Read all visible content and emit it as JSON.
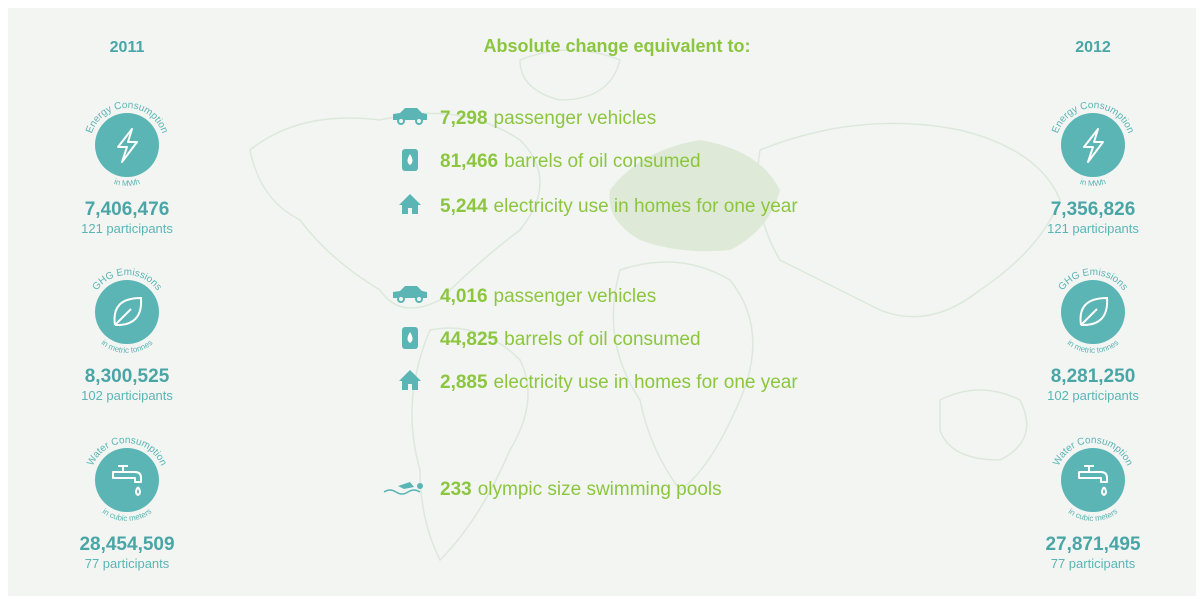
{
  "years": {
    "left": "2011",
    "right": "2012"
  },
  "title": "Absolute change equivalent to:",
  "metrics": [
    {
      "name": "Energy Consumption",
      "unit": "in MWh",
      "values": [
        "7,406,476",
        "7,356,826"
      ],
      "participants": [
        "121 participants",
        "121 participants"
      ]
    },
    {
      "name": "GHG Emissions",
      "unit": "in metric tonnes",
      "values": [
        "8,300,525",
        "8,281,250"
      ],
      "participants": [
        "102 participants",
        "102 participants"
      ]
    },
    {
      "name": "Water Consumption",
      "unit": "in cubic meters",
      "values": [
        "28,454,509",
        "27,871,495"
      ],
      "participants": [
        "77 participants",
        "77 participants"
      ]
    }
  ],
  "equivalents": [
    {
      "value": "7,298",
      "label": "passenger vehicles"
    },
    {
      "value": "81,466",
      "label": "barrels of oil consumed"
    },
    {
      "value": "5,244",
      "label": "electricity use in homes for one year"
    },
    {
      "value": "4,016",
      "label": "passenger vehicles"
    },
    {
      "value": "44,825",
      "label": "barrels of oil consumed"
    },
    {
      "value": "2,885",
      "label": "electricity use in homes for one year"
    },
    {
      "value": "233",
      "label": "olympic size swimming pools"
    }
  ]
}
